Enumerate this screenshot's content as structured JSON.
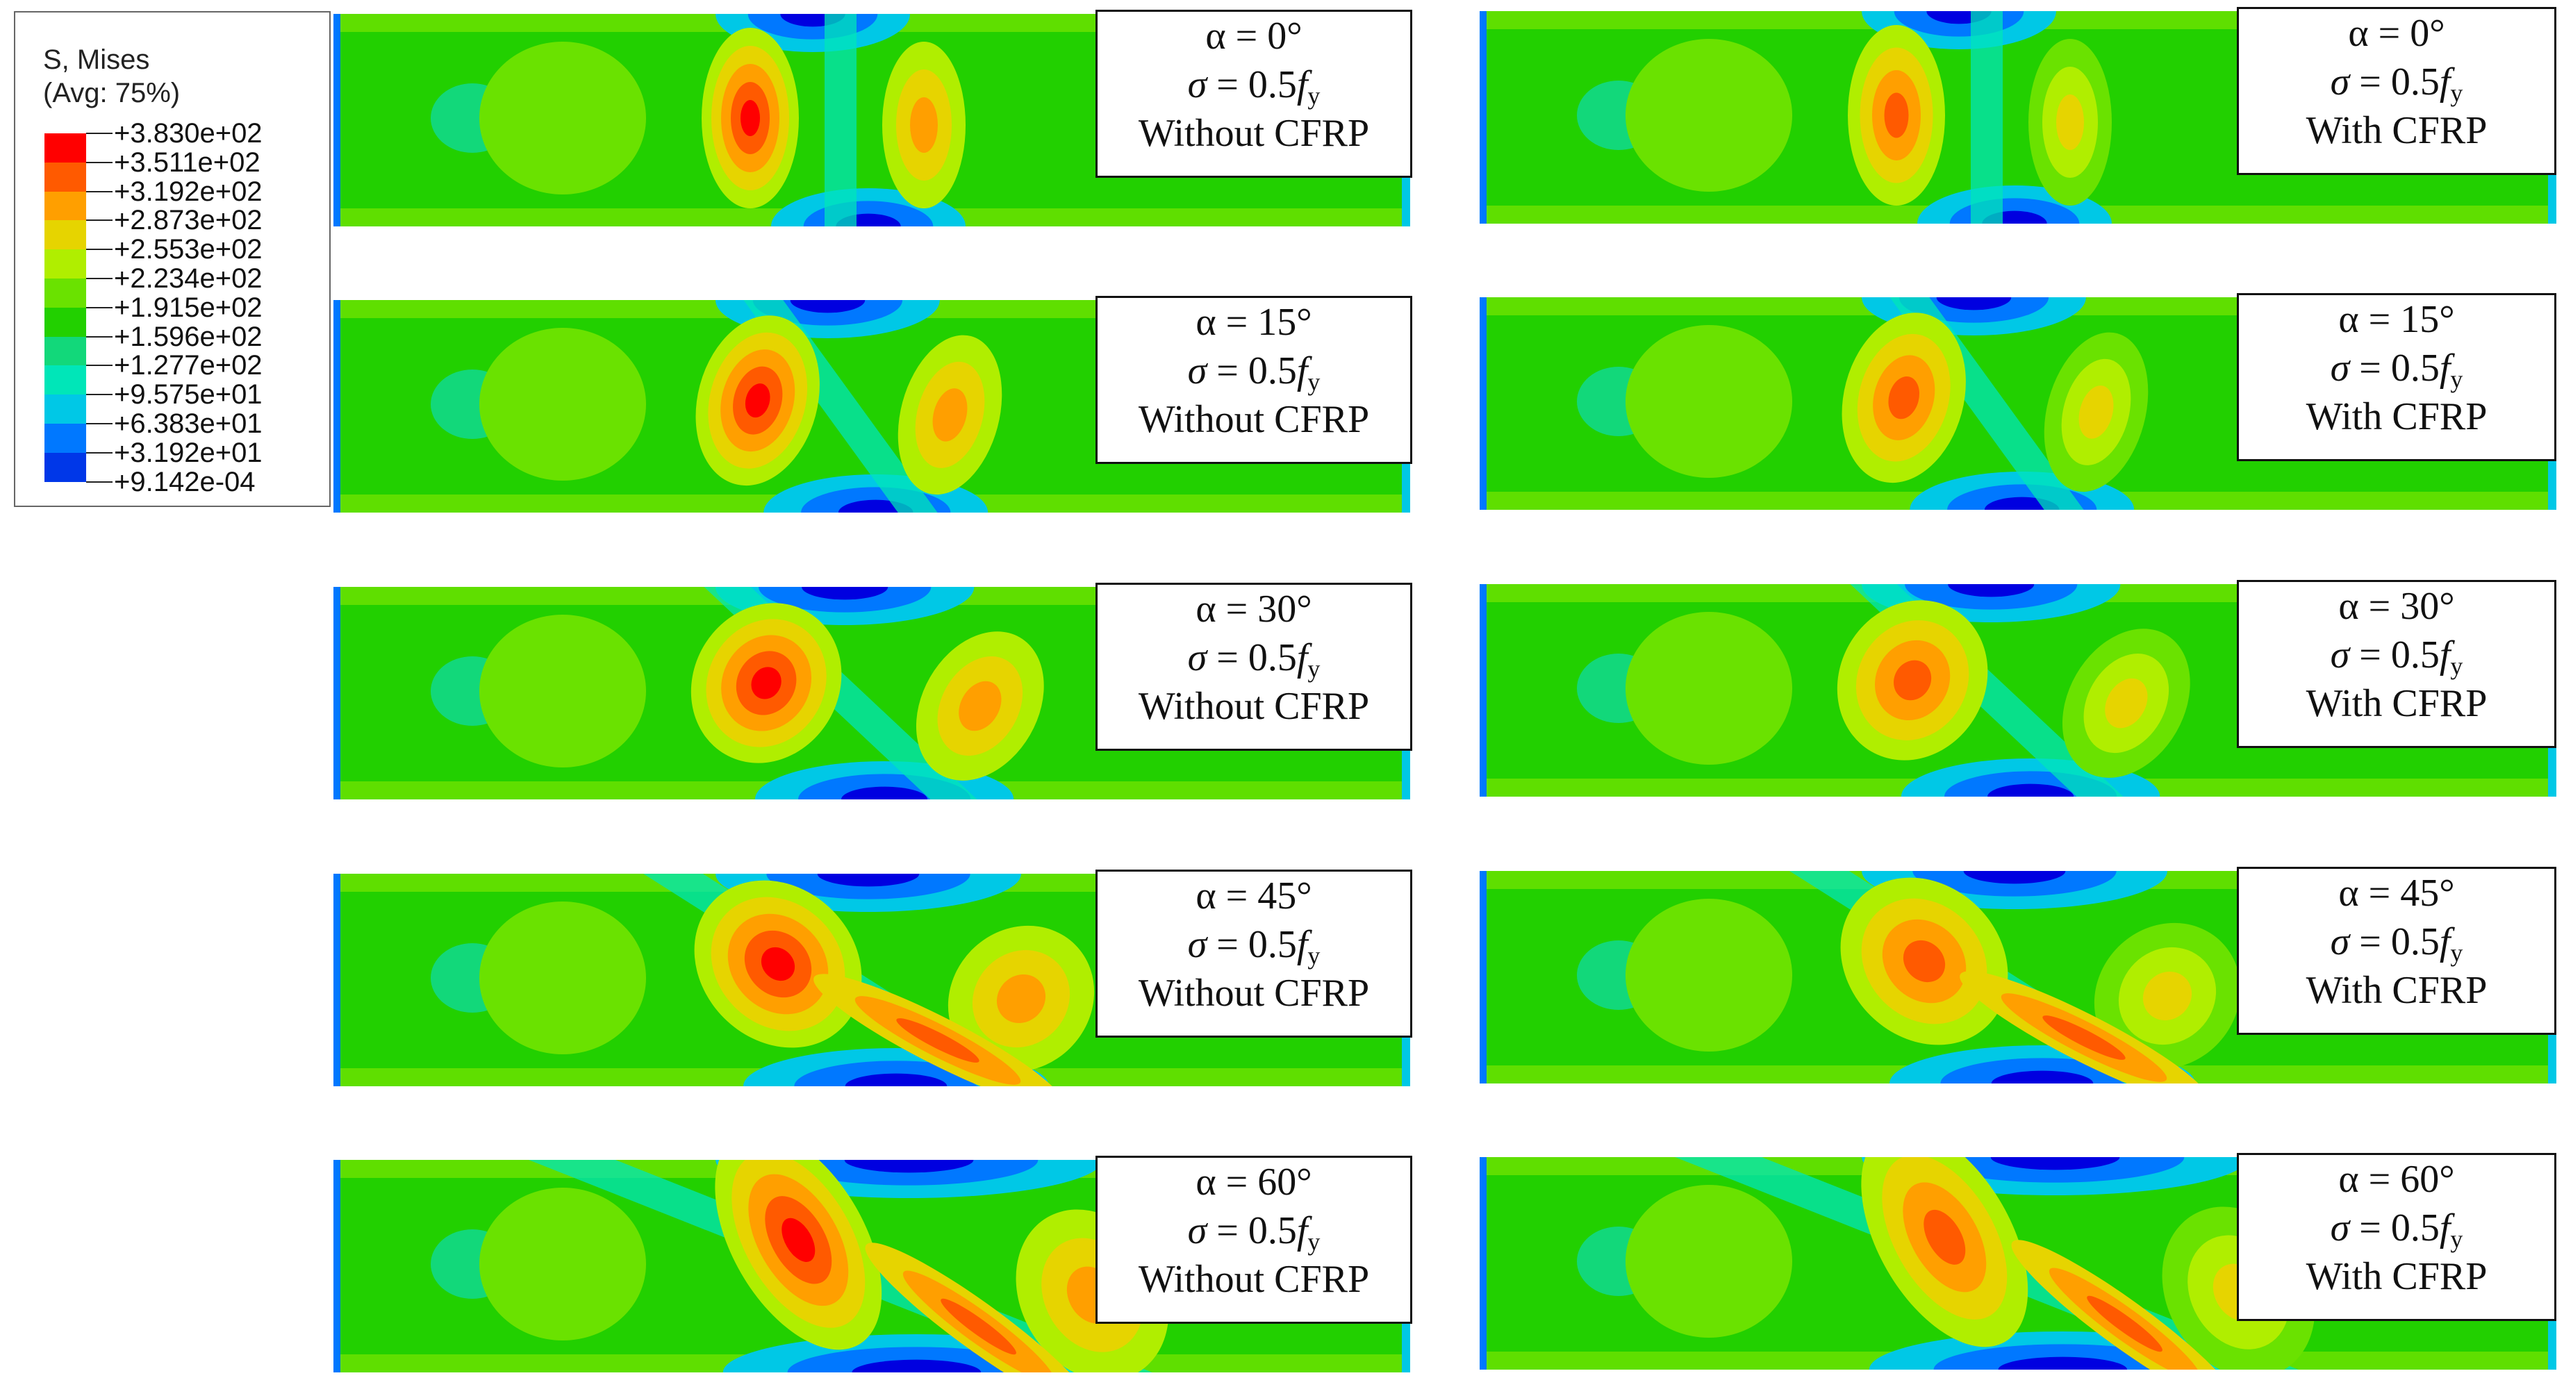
{
  "legend": {
    "title": "S, Mises",
    "subtitle": "(Avg: 75%)",
    "levels": [
      "+3.830e+02",
      "+3.511e+02",
      "+3.192e+02",
      "+2.873e+02",
      "+2.553e+02",
      "+2.234e+02",
      "+1.915e+02",
      "+1.596e+02",
      "+1.277e+02",
      "+9.575e+01",
      "+6.383e+01",
      "+3.192e+01",
      "+9.142e-04"
    ],
    "colors": [
      "#ff0000",
      "#ff5a00",
      "#ff9f00",
      "#e6d400",
      "#b0ee00",
      "#6ae200",
      "#22d000",
      "#12d87a",
      "#00e6b8",
      "#00c8e6",
      "#0078ff",
      "#0037e8",
      "#0000e0"
    ]
  },
  "panels": [
    {
      "alpha": "α = 0°",
      "sigma_sym": "σ",
      "sigma_mid": " = 0.5",
      "fy": "f",
      "fy_sub": "y",
      "cfrp": "Without CFRP"
    },
    {
      "alpha": "α = 0°",
      "sigma_sym": "σ",
      "sigma_mid": " = 0.5",
      "fy": "f",
      "fy_sub": "y",
      "cfrp": "With CFRP"
    },
    {
      "alpha": "α = 15°",
      "sigma_sym": "σ",
      "sigma_mid": " = 0.5",
      "fy": "f",
      "fy_sub": "y",
      "cfrp": "Without CFRP"
    },
    {
      "alpha": "α = 15°",
      "sigma_sym": "σ",
      "sigma_mid": " = 0.5",
      "fy": "f",
      "fy_sub": "y",
      "cfrp": "With CFRP"
    },
    {
      "alpha": "α = 30°",
      "sigma_sym": "σ",
      "sigma_mid": " = 0.5",
      "fy": "f",
      "fy_sub": "y",
      "cfrp": "Without CFRP"
    },
    {
      "alpha": "α = 30°",
      "sigma_sym": "σ",
      "sigma_mid": " = 0.5",
      "fy": "f",
      "fy_sub": "y",
      "cfrp": "With CFRP"
    },
    {
      "alpha": "α = 45°",
      "sigma_sym": "σ",
      "sigma_mid": " = 0.5",
      "fy": "f",
      "fy_sub": "y",
      "cfrp": "Without CFRP"
    },
    {
      "alpha": "α = 45°",
      "sigma_sym": "σ",
      "sigma_mid": " = 0.5",
      "fy": "f",
      "fy_sub": "y",
      "cfrp": "With CFRP"
    },
    {
      "alpha": "α = 60°",
      "sigma_sym": "σ",
      "sigma_mid": " = 0.5",
      "fy": "f",
      "fy_sub": "y",
      "cfrp": "Without CFRP"
    },
    {
      "alpha": "α = 60°",
      "sigma_sym": "σ",
      "sigma_mid": " = 0.5",
      "fy": "f",
      "fy_sub": "y",
      "cfrp": "With CFRP"
    }
  ]
}
